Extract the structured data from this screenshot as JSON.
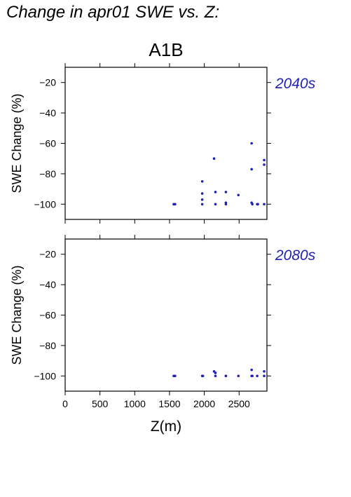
{
  "page_title": "Change in apr01 SWE vs. Z:",
  "colors": {
    "points": "#1f22b4",
    "panel_label": "#1f22b4",
    "axis": "#000000"
  },
  "chart_data": [
    {
      "type": "scatter",
      "title": "A1B",
      "panel_label": "2040s",
      "xlabel": "",
      "ylabel": "SWE Change (%)",
      "xlim": [
        0,
        2900
      ],
      "ylim": [
        -110,
        -10
      ],
      "xticks": [
        0,
        500,
        1000,
        1500,
        2000,
        2500
      ],
      "yticks": [
        -20,
        -40,
        -60,
        -80,
        -100
      ],
      "show_xtick_labels": false,
      "grid": false,
      "series": [
        {
          "x": [
            1560,
            1580,
            1970,
            1970,
            1970,
            1970,
            2140,
            2160,
            2160,
            2310,
            2310,
            2310,
            2490,
            2680,
            2680,
            2680,
            2690,
            2760,
            2770,
            2860,
            2860,
            2860
          ],
          "y": [
            -100,
            -100,
            -85,
            -93,
            -97,
            -100,
            -70,
            -92,
            -100,
            -92,
            -99,
            -100,
            -94,
            -60,
            -77,
            -99,
            -100,
            -100,
            -100,
            -71,
            -74,
            -100
          ]
        }
      ]
    },
    {
      "type": "scatter",
      "title": "",
      "panel_label": "2080s",
      "xlabel": "Z(m)",
      "ylabel": "SWE Change (%)",
      "xlim": [
        0,
        2900
      ],
      "ylim": [
        -110,
        -10
      ],
      "xticks": [
        0,
        500,
        1000,
        1500,
        2000,
        2500
      ],
      "yticks": [
        -20,
        -40,
        -60,
        -80,
        -100
      ],
      "show_xtick_labels": true,
      "grid": false,
      "series": [
        {
          "x": [
            1560,
            1580,
            1970,
            1980,
            2140,
            2160,
            2160,
            2310,
            2310,
            2490,
            2680,
            2680,
            2690,
            2760,
            2860,
            2860
          ],
          "y": [
            -100,
            -100,
            -100,
            -100,
            -97,
            -98,
            -100,
            -100,
            -100,
            -100,
            -96,
            -100,
            -100,
            -100,
            -97,
            -100
          ]
        }
      ]
    }
  ]
}
